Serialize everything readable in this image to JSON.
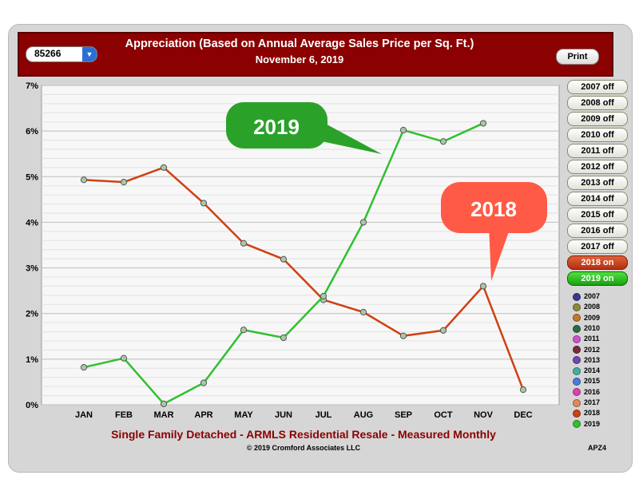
{
  "header": {
    "zip": "85266",
    "title": "Appreciation (Based on Annual Average Sales Price per Sq. Ft.)",
    "date": "November 6, 2019",
    "print_label": "Print"
  },
  "year_buttons": [
    {
      "label": "2007 off",
      "state": "off"
    },
    {
      "label": "2008 off",
      "state": "off"
    },
    {
      "label": "2009 off",
      "state": "off"
    },
    {
      "label": "2010 off",
      "state": "off"
    },
    {
      "label": "2011 off",
      "state": "off"
    },
    {
      "label": "2012 off",
      "state": "off"
    },
    {
      "label": "2013 off",
      "state": "off"
    },
    {
      "label": "2014 off",
      "state": "off"
    },
    {
      "label": "2015 off",
      "state": "off"
    },
    {
      "label": "2016 off",
      "state": "off"
    },
    {
      "label": "2017 off",
      "state": "off"
    },
    {
      "label": "2018 on",
      "state": "on-2018"
    },
    {
      "label": "2019 on",
      "state": "on-2019"
    }
  ],
  "legend": [
    {
      "label": "2007",
      "color": "#3a3a8a"
    },
    {
      "label": "2008",
      "color": "#8a8a3a"
    },
    {
      "label": "2009",
      "color": "#c07a2a"
    },
    {
      "label": "2010",
      "color": "#2a6a4a"
    },
    {
      "label": "2011",
      "color": "#d050d0"
    },
    {
      "label": "2012",
      "color": "#7a2a3a"
    },
    {
      "label": "2013",
      "color": "#6a4ab0"
    },
    {
      "label": "2014",
      "color": "#40b0a0"
    },
    {
      "label": "2015",
      "color": "#4a7ae0"
    },
    {
      "label": "2016",
      "color": "#e040b0"
    },
    {
      "label": "2017",
      "color": "#e08a5a"
    },
    {
      "label": "2018",
      "color": "#d04010"
    },
    {
      "label": "2019",
      "color": "#30c030"
    }
  ],
  "footer": {
    "title": "Single Family Detached - ARMLS Residential Resale - Measured Monthly",
    "copyright": "© 2019 Cromford Associates LLC",
    "code": "APZ4"
  },
  "chart_data": {
    "type": "line",
    "categories": [
      "JAN",
      "FEB",
      "MAR",
      "APR",
      "MAY",
      "JUN",
      "JUL",
      "AUG",
      "SEP",
      "OCT",
      "NOV",
      "DEC"
    ],
    "ylim": [
      0,
      7
    ],
    "ytick_labels": [
      "0%",
      "1%",
      "2%",
      "3%",
      "4%",
      "5%",
      "6%",
      "7%"
    ],
    "grid": true,
    "series": [
      {
        "name": "2018",
        "color": "#d04010",
        "values": [
          4.93,
          4.88,
          5.2,
          4.42,
          3.54,
          3.19,
          2.3,
          2.03,
          1.51,
          1.63,
          2.6,
          0.33
        ]
      },
      {
        "name": "2019",
        "color": "#30c030",
        "values": [
          0.82,
          1.02,
          0.02,
          0.48,
          1.64,
          1.47,
          2.38,
          4.0,
          6.02,
          5.77,
          6.17,
          null
        ]
      }
    ],
    "annotations": [
      {
        "text": "2019",
        "color": "#2aa22a",
        "series": "2019"
      },
      {
        "text": "2018",
        "color": "#ff5a45",
        "series": "2018"
      }
    ]
  }
}
